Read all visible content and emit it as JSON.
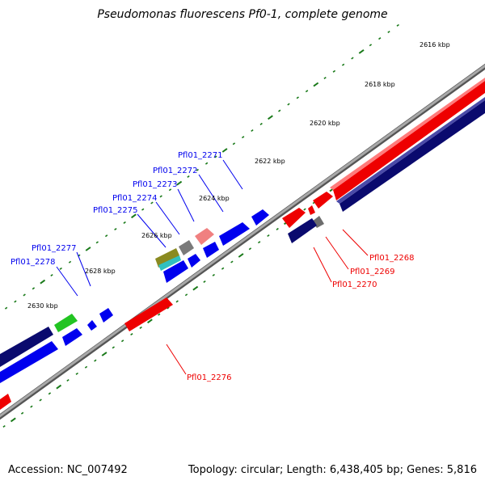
{
  "title": "Pseudomonas fluorescens Pf0-1, complete genome",
  "footer": {
    "accession": "Accession: NC_007492",
    "summary": "Topology: circular; Length: 6,438,405 bp; Genes: 5,816"
  },
  "kbp_labels": [
    "2616 kbp",
    "2618 kbp",
    "2620 kbp",
    "2622 kbp",
    "2624 kbp",
    "2626 kbp",
    "2628 kbp",
    "2630 kbp"
  ],
  "gene_labels": {
    "blue": [
      "Pfl01_2271",
      "Pfl01_2272",
      "Pfl01_2273",
      "Pfl01_2274",
      "Pfl01_2275",
      "Pfl01_2277",
      "Pfl01_2278"
    ],
    "red": [
      "Pfl01_2268",
      "Pfl01_2269",
      "Pfl01_2270",
      "Pfl01_2276"
    ]
  },
  "colors": {
    "forward_gene": "#0000ee",
    "reverse_gene": "#ee0000",
    "navy_block": "#0a0a6e",
    "tick": "#1a7a1a",
    "axis": "#8a8a8a"
  }
}
